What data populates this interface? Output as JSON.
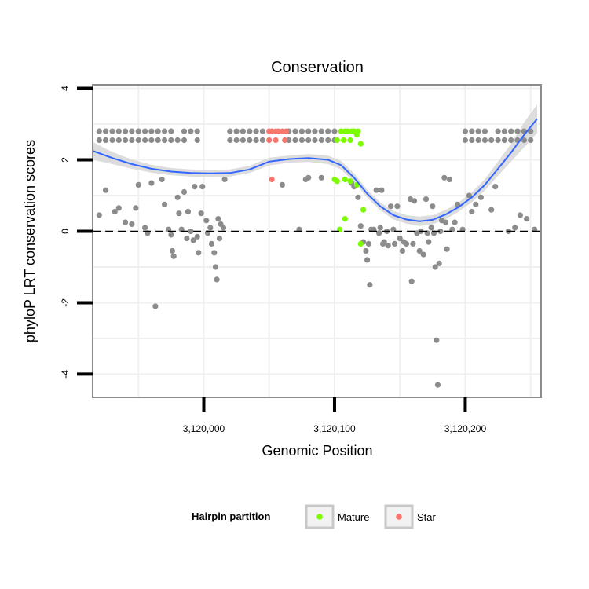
{
  "chart_data": {
    "type": "scatter",
    "title": "Conservation",
    "xlabel": "Genomic Position",
    "ylabel": "phyloP LRT conservation scores",
    "xlim": [
      3119915,
      3120258
    ],
    "ylim": [
      -4.65,
      4.1
    ],
    "x_ticks": [
      3120000,
      3120100,
      3120200
    ],
    "x_tick_labels": [
      "3,120,000",
      "3,120,100",
      "3,120,200"
    ],
    "y_ticks": [
      4,
      2,
      0,
      -2,
      -4
    ],
    "y_tick_labels": [
      "4",
      "2",
      "0",
      "-2",
      "-4"
    ],
    "reference_line": {
      "y": 0,
      "style": "dashed"
    },
    "grid": true,
    "legend": {
      "title": "Hairpin partition",
      "position": "bottom",
      "entries": [
        {
          "label": "Mature",
          "color": "#7CFC00"
        },
        {
          "label": "Star",
          "color": "#F8766D"
        }
      ]
    },
    "colors": {
      "other": "#8c8c8c",
      "Mature": "#7CFC00",
      "Star": "#F8766D",
      "smooth": "#3366FF",
      "ribbon": "#d9d9d9"
    },
    "series": [
      {
        "name": "Other",
        "color": "#8c8c8c",
        "points": [
          [
            3119920,
            2.8
          ],
          [
            3119925,
            2.8
          ],
          [
            3119930,
            2.8
          ],
          [
            3119935,
            2.8
          ],
          [
            3119940,
            2.8
          ],
          [
            3119945,
            2.8
          ],
          [
            3119950,
            2.8
          ],
          [
            3119955,
            2.8
          ],
          [
            3119960,
            2.8
          ],
          [
            3119965,
            2.8
          ],
          [
            3119970,
            2.8
          ],
          [
            3119975,
            2.8
          ],
          [
            3119985,
            2.8
          ],
          [
            3119990,
            2.8
          ],
          [
            3119995,
            2.8
          ],
          [
            3119920,
            2.55
          ],
          [
            3119925,
            2.55
          ],
          [
            3119930,
            2.55
          ],
          [
            3119935,
            2.55
          ],
          [
            3119940,
            2.55
          ],
          [
            3119945,
            2.55
          ],
          [
            3119950,
            2.55
          ],
          [
            3119955,
            2.55
          ],
          [
            3119960,
            2.55
          ],
          [
            3119965,
            2.55
          ],
          [
            3119970,
            2.55
          ],
          [
            3119975,
            2.55
          ],
          [
            3119980,
            2.55
          ],
          [
            3119985,
            2.55
          ],
          [
            3119995,
            2.55
          ],
          [
            3120020,
            2.8
          ],
          [
            3120025,
            2.8
          ],
          [
            3120030,
            2.8
          ],
          [
            3120035,
            2.8
          ],
          [
            3120040,
            2.8
          ],
          [
            3120045,
            2.8
          ],
          [
            3120065,
            2.8
          ],
          [
            3120070,
            2.8
          ],
          [
            3120075,
            2.8
          ],
          [
            3120080,
            2.8
          ],
          [
            3120085,
            2.8
          ],
          [
            3120090,
            2.8
          ],
          [
            3120095,
            2.8
          ],
          [
            3120100,
            2.8
          ],
          [
            3120020,
            2.55
          ],
          [
            3120025,
            2.55
          ],
          [
            3120030,
            2.55
          ],
          [
            3120035,
            2.55
          ],
          [
            3120040,
            2.55
          ],
          [
            3120045,
            2.55
          ],
          [
            3120065,
            2.55
          ],
          [
            3120070,
            2.55
          ],
          [
            3120075,
            2.55
          ],
          [
            3120080,
            2.55
          ],
          [
            3120085,
            2.55
          ],
          [
            3120090,
            2.55
          ],
          [
            3120095,
            2.55
          ],
          [
            3120100,
            2.55
          ],
          [
            3120200,
            2.8
          ],
          [
            3120205,
            2.8
          ],
          [
            3120210,
            2.8
          ],
          [
            3120215,
            2.8
          ],
          [
            3120225,
            2.8
          ],
          [
            3120230,
            2.8
          ],
          [
            3120235,
            2.8
          ],
          [
            3120240,
            2.8
          ],
          [
            3120245,
            2.8
          ],
          [
            3120250,
            2.8
          ],
          [
            3120200,
            2.55
          ],
          [
            3120205,
            2.55
          ],
          [
            3120210,
            2.55
          ],
          [
            3120215,
            2.55
          ],
          [
            3120220,
            2.55
          ],
          [
            3120225,
            2.55
          ],
          [
            3120230,
            2.55
          ],
          [
            3120235,
            2.55
          ],
          [
            3120240,
            2.55
          ],
          [
            3120245,
            2.55
          ],
          [
            3120250,
            2.55
          ],
          [
            3119920,
            0.45
          ],
          [
            3119925,
            1.15
          ],
          [
            3119932,
            0.55
          ],
          [
            3119935,
            0.65
          ],
          [
            3119940,
            0.25
          ],
          [
            3119945,
            0.2
          ],
          [
            3119948,
            0.65
          ],
          [
            3119950,
            1.3
          ],
          [
            3119955,
            0.1
          ],
          [
            3119957,
            -0.05
          ],
          [
            3119960,
            1.35
          ],
          [
            3119963,
            -2.1
          ],
          [
            3119968,
            1.45
          ],
          [
            3119970,
            0.75
          ],
          [
            3119973,
            0.05
          ],
          [
            3119975,
            -0.1
          ],
          [
            3119976,
            -0.55
          ],
          [
            3119977,
            -0.7
          ],
          [
            3119980,
            0.95
          ],
          [
            3119981,
            0.5
          ],
          [
            3119983,
            0.05
          ],
          [
            3119985,
            1.1
          ],
          [
            3119987,
            -0.2
          ],
          [
            3119988,
            0.55
          ],
          [
            3119990,
            0.0
          ],
          [
            3119992,
            -0.25
          ],
          [
            3119993,
            1.25
          ],
          [
            3119995,
            -0.15
          ],
          [
            3119996,
            -0.6
          ],
          [
            3119998,
            0.5
          ],
          [
            3119999,
            1.25
          ],
          [
            3120002,
            0.3
          ],
          [
            3120003,
            -0.05
          ],
          [
            3120005,
            0.1
          ],
          [
            3120006,
            -0.35
          ],
          [
            3120008,
            -0.6
          ],
          [
            3120009,
            -1.0
          ],
          [
            3120010,
            -1.35
          ],
          [
            3120011,
            0.35
          ],
          [
            3120012,
            -0.2
          ],
          [
            3120013,
            0.2
          ],
          [
            3120015,
            0.1
          ],
          [
            3120016,
            1.45
          ],
          [
            3120060,
            1.3
          ],
          [
            3120073,
            0.05
          ],
          [
            3120078,
            1.45
          ],
          [
            3120080,
            1.5
          ],
          [
            3120090,
            1.5
          ],
          [
            3120113,
            1.35
          ],
          [
            3120115,
            1.25
          ],
          [
            3120118,
            0.95
          ],
          [
            3120120,
            0.15
          ],
          [
            3120122,
            -0.3
          ],
          [
            3120124,
            -0.55
          ],
          [
            3120125,
            -0.8
          ],
          [
            3120126,
            -0.35
          ],
          [
            3120127,
            -1.5
          ],
          [
            3120128,
            0.05
          ],
          [
            3120130,
            0.05
          ],
          [
            3120132,
            1.15
          ],
          [
            3120134,
            -0.05
          ],
          [
            3120135,
            0.1
          ],
          [
            3120136,
            1.15
          ],
          [
            3120137,
            -0.35
          ],
          [
            3120138,
            -0.3
          ],
          [
            3120140,
            0.0
          ],
          [
            3120141,
            -0.4
          ],
          [
            3120143,
            0.7
          ],
          [
            3120145,
            0.05
          ],
          [
            3120146,
            -0.35
          ],
          [
            3120148,
            0.7
          ],
          [
            3120150,
            -0.2
          ],
          [
            3120152,
            -0.55
          ],
          [
            3120153,
            -0.3
          ],
          [
            3120155,
            -0.35
          ],
          [
            3120158,
            0.9
          ],
          [
            3120159,
            -1.4
          ],
          [
            3120160,
            -0.35
          ],
          [
            3120161,
            0.85
          ],
          [
            3120163,
            -0.05
          ],
          [
            3120165,
            -0.55
          ],
          [
            3120166,
            0.0
          ],
          [
            3120168,
            -0.65
          ],
          [
            3120170,
            0.9
          ],
          [
            3120171,
            -0.05
          ],
          [
            3120172,
            -0.3
          ],
          [
            3120174,
            0.1
          ],
          [
            3120175,
            0.7
          ],
          [
            3120176,
            -0.05
          ],
          [
            3120177,
            -1.0
          ],
          [
            3120178,
            -3.05
          ],
          [
            3120179,
            -4.3
          ],
          [
            3120180,
            -0.9
          ],
          [
            3120181,
            0.0
          ],
          [
            3120182,
            0.3
          ],
          [
            3120184,
            1.5
          ],
          [
            3120185,
            0.25
          ],
          [
            3120186,
            -0.5
          ],
          [
            3120188,
            1.45
          ],
          [
            3120190,
            0.05
          ],
          [
            3120192,
            0.25
          ],
          [
            3120194,
            0.75
          ],
          [
            3120198,
            0.05
          ],
          [
            3120203,
            1.0
          ],
          [
            3120205,
            0.55
          ],
          [
            3120208,
            0.75
          ],
          [
            3120212,
            0.95
          ],
          [
            3120220,
            0.6
          ],
          [
            3120223,
            1.25
          ],
          [
            3120233,
            0.0
          ],
          [
            3120238,
            0.1
          ],
          [
            3120242,
            0.45
          ],
          [
            3120247,
            0.35
          ],
          [
            3120253,
            0.05
          ]
        ]
      },
      {
        "name": "Mature",
        "color": "#7CFC00",
        "points": [
          [
            3120105,
            2.8
          ],
          [
            3120108,
            2.8
          ],
          [
            3120110,
            2.8
          ],
          [
            3120113,
            2.8
          ],
          [
            3120115,
            2.8
          ],
          [
            3120118,
            2.8
          ],
          [
            3120102,
            2.55
          ],
          [
            3120107,
            2.55
          ],
          [
            3120112,
            2.55
          ],
          [
            3120117,
            2.7
          ],
          [
            3120120,
            2.45
          ],
          [
            3120100,
            1.45
          ],
          [
            3120102,
            1.4
          ],
          [
            3120108,
            1.45
          ],
          [
            3120112,
            1.4
          ],
          [
            3120117,
            1.3
          ],
          [
            3120108,
            0.35
          ],
          [
            3120104,
            0.05
          ],
          [
            3120122,
            0.6
          ],
          [
            3120120,
            -0.35
          ]
        ]
      },
      {
        "name": "Star",
        "color": "#F8766D",
        "points": [
          [
            3120050,
            2.8
          ],
          [
            3120052,
            2.8
          ],
          [
            3120055,
            2.8
          ],
          [
            3120057,
            2.8
          ],
          [
            3120060,
            2.8
          ],
          [
            3120063,
            2.8
          ],
          [
            3120050,
            2.55
          ],
          [
            3120055,
            2.55
          ],
          [
            3120062,
            2.55
          ],
          [
            3120052,
            1.45
          ]
        ]
      }
    ],
    "smooth": {
      "name": "loess",
      "color": "#3366FF",
      "x": [
        3119915,
        3119930,
        3119945,
        3119960,
        3119975,
        3119990,
        3120005,
        3120020,
        3120035,
        3120050,
        3120065,
        3120080,
        3120095,
        3120105,
        3120115,
        3120125,
        3120135,
        3120145,
        3120155,
        3120165,
        3120175,
        3120185,
        3120195,
        3120205,
        3120215,
        3120225,
        3120235,
        3120245,
        3120255
      ],
      "y": [
        2.25,
        2.05,
        1.88,
        1.75,
        1.67,
        1.63,
        1.62,
        1.63,
        1.73,
        1.95,
        2.02,
        2.05,
        2.0,
        1.85,
        1.5,
        1.05,
        0.7,
        0.45,
        0.33,
        0.28,
        0.32,
        0.47,
        0.68,
        0.95,
        1.3,
        1.75,
        2.2,
        2.7,
        3.15
      ],
      "lower": [
        2.0,
        1.88,
        1.75,
        1.64,
        1.57,
        1.53,
        1.52,
        1.53,
        1.63,
        1.84,
        1.92,
        1.94,
        1.88,
        1.73,
        1.38,
        0.94,
        0.59,
        0.33,
        0.21,
        0.15,
        0.19,
        0.34,
        0.55,
        0.81,
        1.14,
        1.55,
        1.95,
        2.35,
        2.75
      ],
      "upper": [
        2.5,
        2.22,
        2.01,
        1.86,
        1.77,
        1.73,
        1.72,
        1.73,
        1.83,
        2.06,
        2.12,
        2.16,
        2.12,
        1.97,
        1.62,
        1.16,
        0.81,
        0.57,
        0.45,
        0.41,
        0.45,
        0.6,
        0.81,
        1.09,
        1.46,
        1.95,
        2.45,
        3.05,
        3.55
      ]
    }
  }
}
